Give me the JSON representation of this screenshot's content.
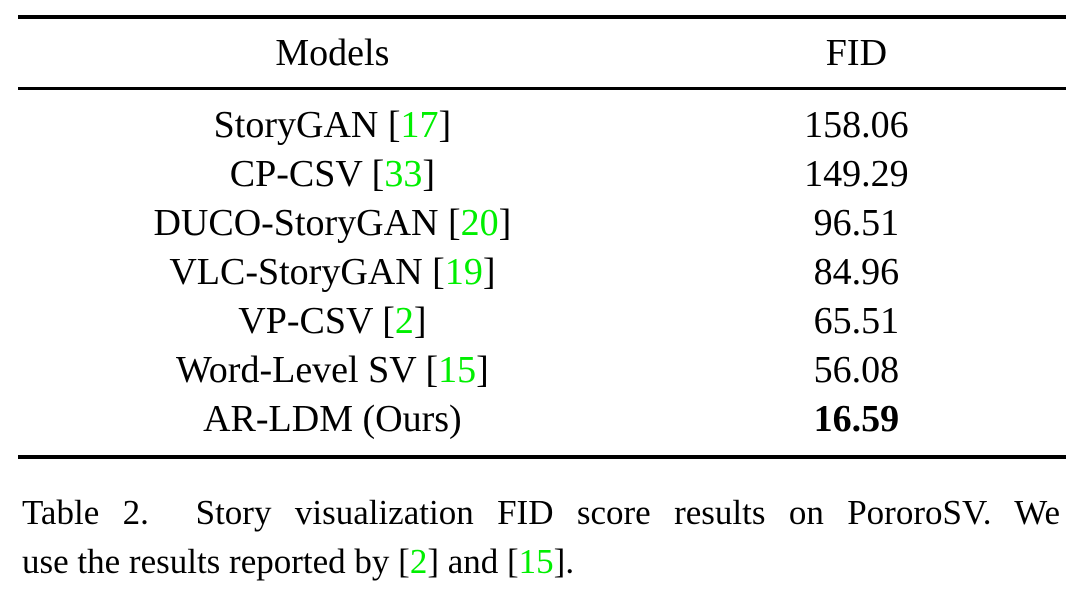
{
  "page": {
    "background": "#ffffff",
    "text_color": "#000000",
    "citation_color": "#00ef00"
  },
  "chart_data": {
    "type": "table",
    "title": "Table 2. Story visualization FID score results on PororoSV.",
    "columns": [
      "Models",
      "FID"
    ],
    "rows": [
      [
        "StoryGAN [17]",
        158.06
      ],
      [
        "CP-CSV [33]",
        149.29
      ],
      [
        "DUCO-StoryGAN [20]",
        96.51
      ],
      [
        "VLC-StoryGAN [19]",
        84.96
      ],
      [
        "VP-CSV [2]",
        65.51
      ],
      [
        "Word-Level SV [15]",
        56.08
      ],
      [
        "AR-LDM (Ours)",
        16.59
      ]
    ],
    "best_row": "AR-LDM (Ours)",
    "best_value_bold": true
  },
  "table": {
    "headers": {
      "models": "Models",
      "fid": "FID"
    },
    "rows": [
      {
        "model_prefix": "StoryGAN [",
        "cite": "17",
        "model_suffix": "]",
        "fid": "158.06",
        "bold": false
      },
      {
        "model_prefix": "CP-CSV [",
        "cite": "33",
        "model_suffix": "]",
        "fid": "149.29",
        "bold": false
      },
      {
        "model_prefix": "DUCO-StoryGAN [",
        "cite": "20",
        "model_suffix": "]",
        "fid": "96.51",
        "bold": false
      },
      {
        "model_prefix": "VLC-StoryGAN [",
        "cite": "19",
        "model_suffix": "]",
        "fid": "84.96",
        "bold": false
      },
      {
        "model_prefix": "VP-CSV [",
        "cite": "2",
        "model_suffix": "]",
        "fid": "65.51",
        "bold": false
      },
      {
        "model_prefix": "Word-Level SV [",
        "cite": "15",
        "model_suffix": "]",
        "fid": "56.08",
        "bold": false
      },
      {
        "model_prefix": "AR-LDM (Ours)",
        "cite": "",
        "model_suffix": "",
        "fid": "16.59",
        "bold": true
      }
    ]
  },
  "caption": {
    "line1": "Table 2.  Story visualization FID score results on PororoSV. We",
    "line2": {
      "a": "use the results reported by [",
      "cite1": "2",
      "b": "] and [",
      "cite2": "15",
      "c": "]."
    }
  }
}
